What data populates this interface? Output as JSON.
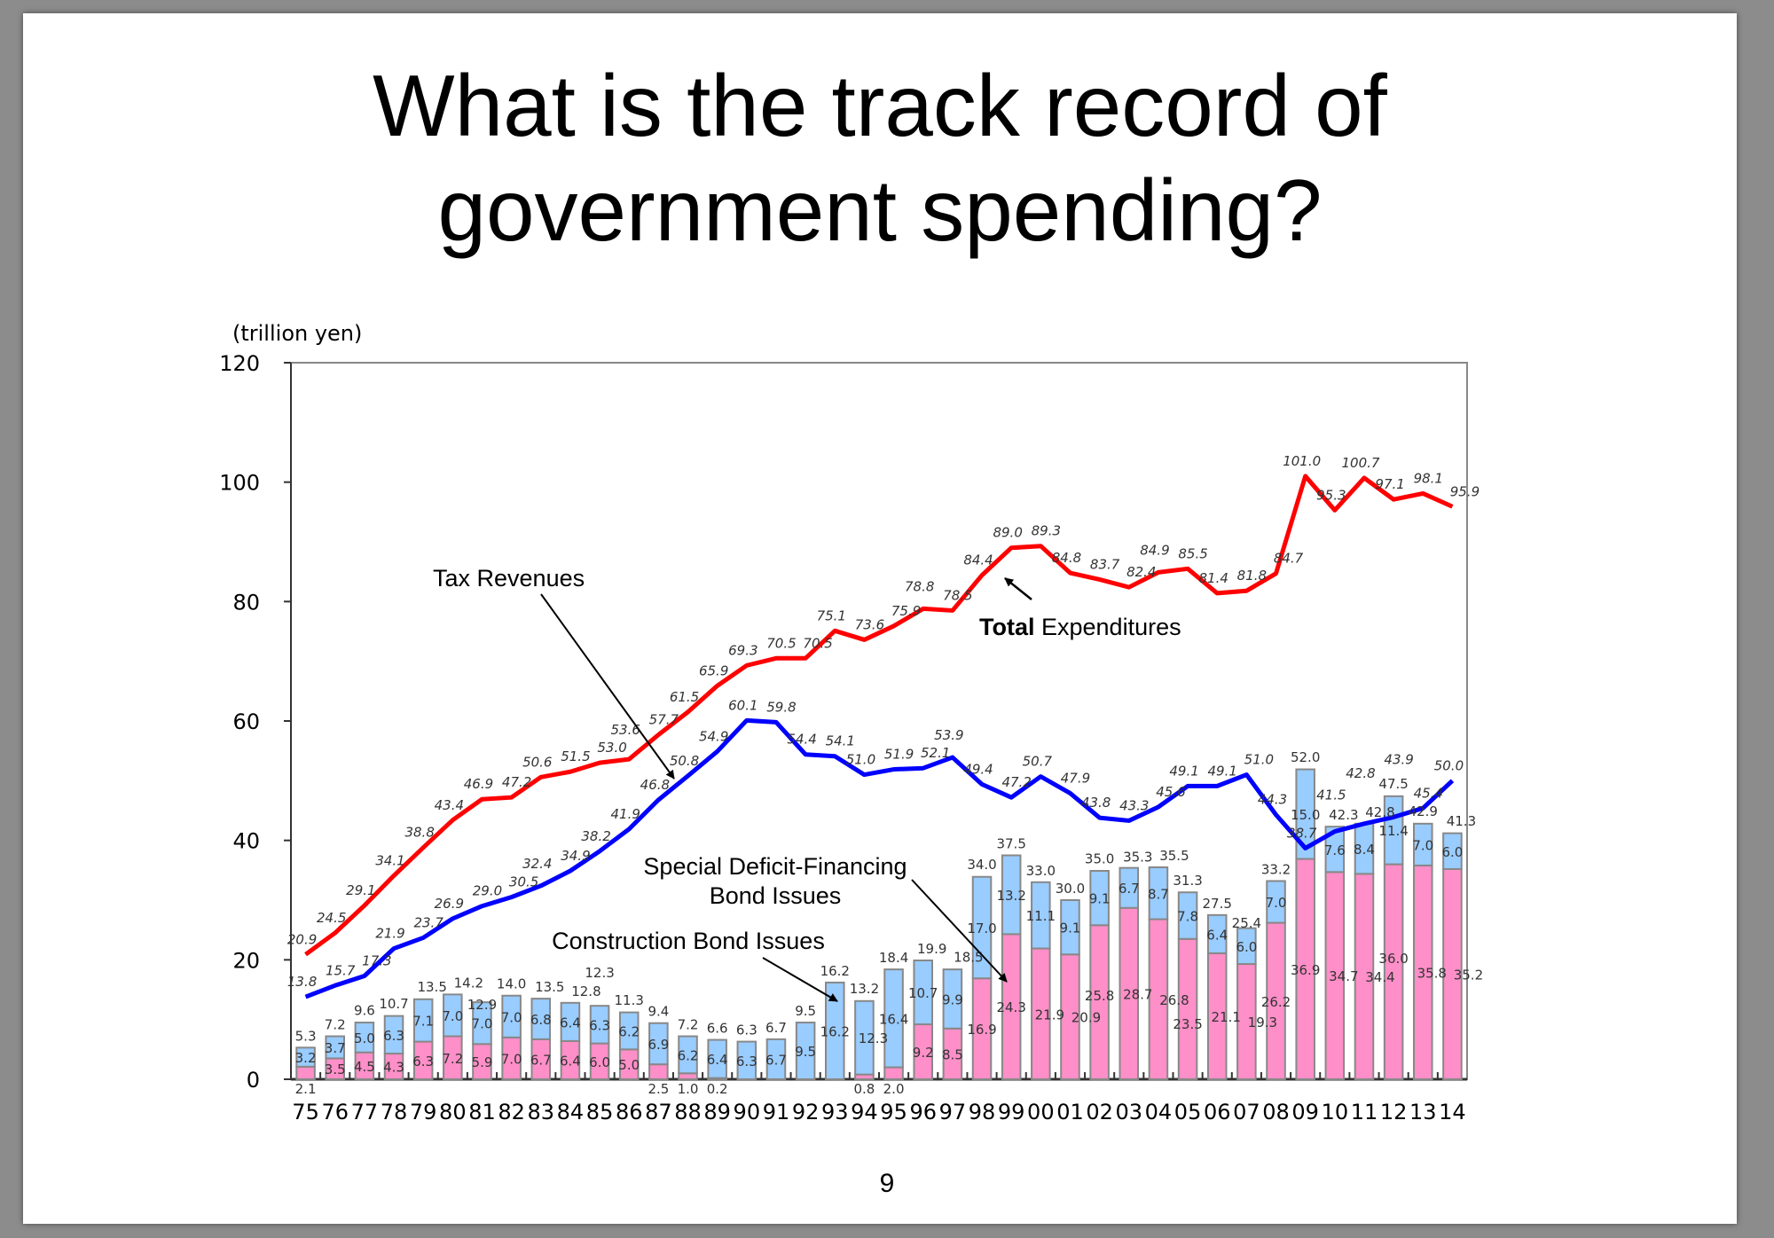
{
  "slide": {
    "title_line1": "What is the track record of",
    "title_line2": "government spending?",
    "page_number": "9"
  },
  "chart_data": {
    "type": "bar",
    "unit_label": "(trillion yen)",
    "ylim": [
      0,
      120
    ],
    "yticks": [
      0,
      20,
      40,
      60,
      80,
      100,
      120
    ],
    "categories": [
      "75",
      "76",
      "77",
      "78",
      "79",
      "80",
      "81",
      "82",
      "83",
      "84",
      "85",
      "86",
      "87",
      "88",
      "89",
      "90",
      "91",
      "92",
      "93",
      "94",
      "95",
      "96",
      "97",
      "98",
      "99",
      "00",
      "01",
      "02",
      "03",
      "04",
      "05",
      "06",
      "07",
      "08",
      "09",
      "10",
      "11",
      "12",
      "13",
      "14"
    ],
    "series": [
      {
        "name": "Special Deficit-Financing Bond Issues",
        "type": "bar-stacked",
        "color": "#ff8fc8",
        "values": [
          2.1,
          3.5,
          4.5,
          4.3,
          6.3,
          7.2,
          5.9,
          7.0,
          6.7,
          6.4,
          6.0,
          5.0,
          2.5,
          1.0,
          0.2,
          0,
          0,
          0,
          0,
          0.8,
          2.0,
          9.2,
          8.5,
          16.9,
          24.3,
          21.9,
          20.9,
          25.8,
          28.7,
          26.8,
          23.5,
          21.1,
          19.3,
          26.2,
          36.9,
          34.7,
          34.4,
          36.0,
          35.8,
          35.2
        ]
      },
      {
        "name": "Construction Bond Issues",
        "type": "bar-stacked",
        "color": "#99ccff",
        "values": [
          3.2,
          3.7,
          5.0,
          6.3,
          7.1,
          7.0,
          7.0,
          7.0,
          6.8,
          6.4,
          6.3,
          6.2,
          6.9,
          6.2,
          6.4,
          6.3,
          6.7,
          9.5,
          16.2,
          12.3,
          16.4,
          10.7,
          9.9,
          17.0,
          13.2,
          11.1,
          9.1,
          9.1,
          6.7,
          8.7,
          7.8,
          6.4,
          6.0,
          7.0,
          15.0,
          7.6,
          8.4,
          11.4,
          7.0,
          6.0
        ]
      },
      {
        "name": "Total Expenditures",
        "type": "line",
        "color": "#ff0000",
        "values": [
          20.9,
          24.5,
          29.1,
          34.1,
          38.8,
          43.4,
          46.9,
          47.2,
          50.6,
          51.5,
          53.0,
          53.6,
          57.7,
          61.5,
          65.9,
          69.3,
          70.5,
          70.5,
          75.1,
          73.6,
          75.9,
          78.8,
          78.5,
          84.4,
          89.0,
          89.3,
          84.8,
          83.7,
          82.4,
          84.9,
          85.5,
          81.4,
          81.8,
          84.7,
          101.0,
          95.3,
          100.7,
          97.1,
          98.1,
          95.9
        ]
      },
      {
        "name": "Tax Revenues",
        "type": "line",
        "color": "#0000ff",
        "values": [
          13.8,
          15.7,
          17.3,
          21.9,
          23.7,
          26.9,
          29.0,
          30.5,
          32.4,
          34.9,
          38.2,
          41.9,
          46.8,
          50.8,
          54.9,
          60.1,
          59.8,
          54.4,
          54.1,
          51.0,
          51.9,
          52.1,
          53.9,
          49.4,
          47.2,
          50.7,
          47.9,
          43.8,
          43.3,
          45.6,
          49.1,
          49.1,
          51.0,
          44.3,
          38.7,
          41.5,
          42.8,
          43.9,
          45.4,
          50.0
        ]
      }
    ],
    "bond_totals": [
      5.3,
      7.2,
      9.6,
      10.7,
      13.5,
      14.2,
      12.9,
      14.0,
      13.5,
      12.8,
      12.3,
      11.3,
      9.4,
      7.2,
      6.6,
      6.3,
      6.7,
      9.5,
      16.2,
      13.2,
      18.4,
      19.9,
      18.5,
      34.0,
      37.5,
      33.0,
      30.0,
      35.0,
      35.3,
      35.5,
      31.3,
      27.5,
      25.4,
      33.2,
      52.0,
      42.3,
      42.8,
      47.5,
      42.9,
      41.3
    ],
    "annotations": {
      "tax": "Tax Revenues",
      "total_bold": "Total",
      "total_rest": " Expenditures",
      "special_line1": "Special Deficit-Financing",
      "special_line2": "Bond Issues",
      "construction": "Construction Bond Issues"
    }
  }
}
